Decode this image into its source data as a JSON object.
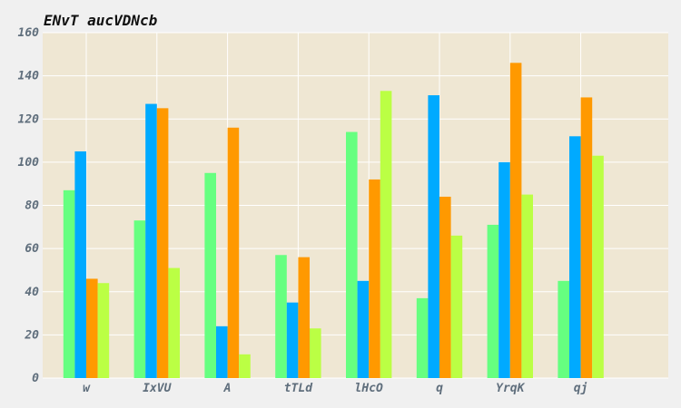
{
  "chart_data": {
    "type": "bar",
    "title": "ENvT aucVDNcb",
    "xlabel": "",
    "ylabel": "",
    "categories": [
      "w",
      "IxVU",
      "A",
      "tTLd",
      "lHcO",
      "q",
      "YrqK",
      "qj"
    ],
    "series": [
      {
        "values": [
          87,
          73,
          95,
          57,
          114,
          37,
          71,
          45
        ]
      },
      {
        "values": [
          105,
          127,
          24,
          35,
          45,
          131,
          100,
          112
        ]
      },
      {
        "values": [
          46,
          125,
          116,
          56,
          92,
          84,
          146,
          130
        ]
      },
      {
        "values": [
          44,
          51,
          11,
          23,
          133,
          66,
          85,
          103
        ]
      }
    ],
    "ylim": [
      0,
      160
    ],
    "yticks": [
      "0",
      "20",
      "40",
      "60",
      "80",
      "100",
      "120",
      "140",
      "160"
    ],
    "grid": true
  },
  "colors": {
    "series": [
      "#66ff80",
      "#00aaff",
      "#ff9900",
      "#bbff44"
    ],
    "plot_background": "#efe7d3",
    "page_background": "#f0f0f0",
    "grid": "#ffffff",
    "tick_text": "#5f6e7c",
    "title_text": "#111111"
  }
}
